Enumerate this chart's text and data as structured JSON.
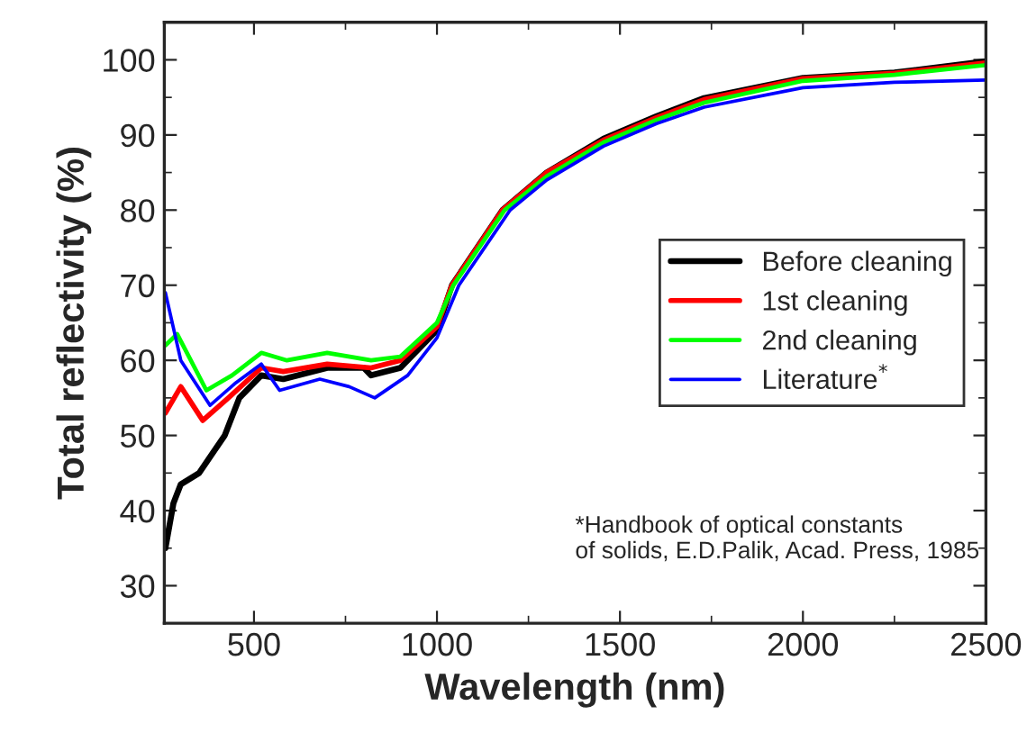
{
  "chart_data": {
    "type": "line",
    "xlabel": "Wavelength (nm)",
    "ylabel": "Total reflectivity (%)",
    "xlim": [
      255,
      2500
    ],
    "ylim": [
      25,
      105
    ],
    "xticks": [
      500,
      1000,
      1500,
      2000,
      2500
    ],
    "yticks": [
      30,
      40,
      50,
      60,
      70,
      80,
      90,
      100
    ],
    "grid": false,
    "legend": "right",
    "marker": "none",
    "line_style": "solid",
    "series": [
      {
        "name": "Before cleaning",
        "color": "#000000",
        "x": [
          258,
          280,
          300,
          350,
          420,
          460,
          520,
          580,
          700,
          800,
          820,
          900,
          1000,
          1041,
          1179,
          1300,
          1455,
          1600,
          1730,
          2000,
          2250,
          2500
        ],
        "values": [
          35,
          41,
          43.5,
          45,
          50,
          55,
          58,
          57.5,
          59,
          59,
          58,
          59,
          64,
          70,
          80,
          85,
          89.5,
          92.5,
          94.9,
          97.6,
          98.3,
          99.8
        ]
      },
      {
        "name": "1st cleaning",
        "color": "#ff0000",
        "x": [
          258,
          300,
          360,
          430,
          520,
          580,
          700,
          820,
          900,
          1000,
          1041,
          1179,
          1300,
          1455,
          1600,
          1730,
          2000,
          2250,
          2500
        ],
        "values": [
          53,
          56.5,
          52,
          55,
          59,
          58.5,
          59.5,
          59,
          60,
          64.5,
          70,
          80,
          85,
          89.3,
          92.3,
          94.7,
          97.5,
          98.2,
          99.6
        ]
      },
      {
        "name": "2nd cleaning",
        "color": "#00ff00",
        "x": [
          258,
          290,
          370,
          440,
          520,
          590,
          700,
          820,
          900,
          1000,
          1045,
          1185,
          1300,
          1455,
          1600,
          1730,
          2000,
          2250,
          2500
        ],
        "values": [
          62,
          63.5,
          56,
          58,
          61,
          60,
          61,
          60,
          60.5,
          65,
          70,
          80,
          84.5,
          89,
          92,
          94.3,
          97.2,
          98,
          99.3
        ]
      },
      {
        "name": "Literature$^{*}$",
        "color": "#0000ff",
        "x": [
          258,
          300,
          380,
          450,
          520,
          570,
          680,
          760,
          830,
          920,
          1000,
          1060,
          1200,
          1300,
          1455,
          1600,
          1730,
          2000,
          2250,
          2500
        ],
        "values": [
          69,
          60,
          54,
          57,
          59.5,
          56,
          57.5,
          56.5,
          55,
          58,
          63,
          70,
          80,
          84,
          88.5,
          91.5,
          93.7,
          96.3,
          97,
          97.3
        ]
      }
    ],
    "annotations": [
      "*Handbook of optical constants\nof solids, E.D.Palik, Acad. Press, 1985"
    ]
  }
}
